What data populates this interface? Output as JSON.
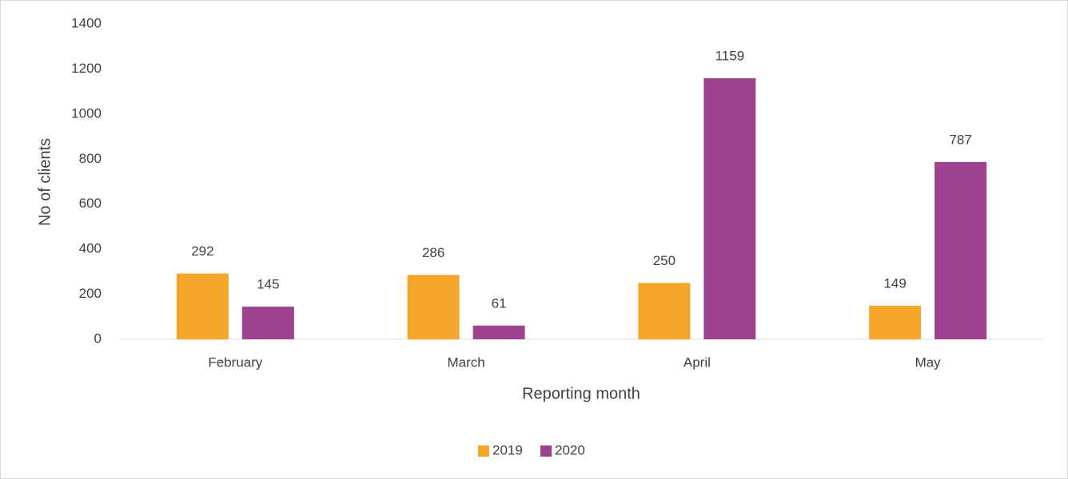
{
  "chart_data": {
    "type": "bar",
    "x_label": "Reporting month",
    "y_label": "No of clients",
    "categories": [
      "February",
      "March",
      "April",
      "May"
    ],
    "series": [
      {
        "name": "2019",
        "color": "#f5a52a",
        "values": [
          292,
          286,
          250,
          149
        ]
      },
      {
        "name": "2020",
        "color": "#a0418f",
        "values": [
          145,
          61,
          1159,
          787
        ]
      }
    ],
    "ylim": [
      0,
      1400
    ],
    "yticks": [
      0,
      200,
      400,
      600,
      800,
      1000,
      1200,
      1400
    ],
    "grid": false,
    "legend": "bottom"
  }
}
